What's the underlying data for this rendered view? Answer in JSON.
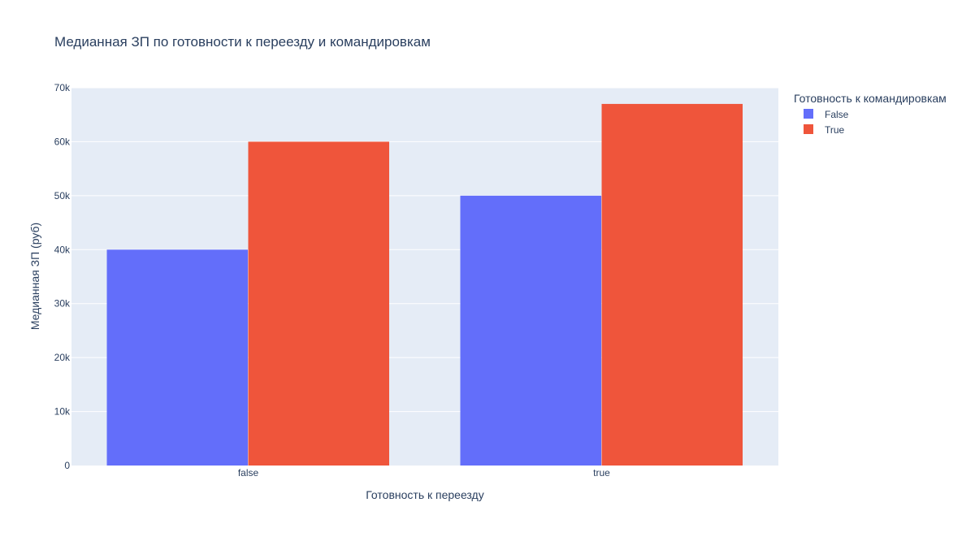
{
  "chart_data": {
    "type": "bar",
    "title": "Медианная ЗП по готовности к переезду и командировкам",
    "xlabel": "Готовность к переезду",
    "ylabel": "Медианная ЗП (руб)",
    "categories": [
      "false",
      "true"
    ],
    "series": [
      {
        "name": "False",
        "values": [
          40000,
          50000
        ],
        "color": "#636efa"
      },
      {
        "name": "True",
        "values": [
          60000,
          67000
        ],
        "color": "#ef553b"
      }
    ],
    "ylim": [
      0,
      70000
    ],
    "y_ticks": [
      0,
      10000,
      20000,
      30000,
      40000,
      50000,
      60000,
      70000
    ],
    "y_tick_labels": [
      "0",
      "10k",
      "20k",
      "30k",
      "40k",
      "50k",
      "60k",
      "70k"
    ],
    "grid": true,
    "legend": {
      "title": "Готовность к командировкам",
      "position": "top-right"
    },
    "plot_background": "#e5ecf6",
    "text_color": "#2a3f5f"
  }
}
